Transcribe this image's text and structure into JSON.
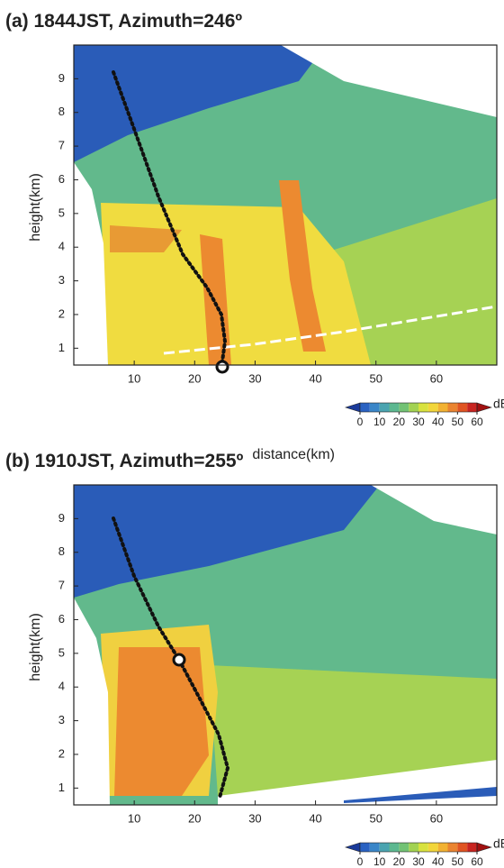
{
  "chart_data": [
    {
      "type": "heatmap",
      "title": "(a) 1844JST, Azimuth=246º",
      "xlabel": "distance(km)",
      "ylabel": "height(km)",
      "xlim": [
        0,
        70
      ],
      "ylim": [
        0.5,
        10
      ],
      "xticks": [
        10,
        20,
        30,
        40,
        50,
        60
      ],
      "yticks": [
        1,
        2,
        3,
        4,
        5,
        6,
        7,
        8,
        9
      ],
      "colorbar": {
        "label": "dBZ",
        "clim": [
          0,
          60
        ],
        "ticks": [
          0,
          10,
          20,
          30,
          40,
          50,
          60
        ],
        "colors": [
          "#1a3a9a",
          "#2a62c2",
          "#3a86c8",
          "#4aa4b0",
          "#5cb890",
          "#72c274",
          "#a2d252",
          "#d8e23e",
          "#f2d63a",
          "#f2b232",
          "#ea8430",
          "#e05422",
          "#c82420",
          "#a01010"
        ]
      }
    },
    {
      "type": "heatmap",
      "title": "(b) 1910JST, Azimuth=255º",
      "xlabel": "distance(km)",
      "ylabel": "height(km)",
      "xlim": [
        0,
        70
      ],
      "ylim": [
        0.5,
        10
      ],
      "xticks": [
        10,
        20,
        30,
        40,
        50,
        60
      ],
      "yticks": [
        1,
        2,
        3,
        4,
        5,
        6,
        7,
        8,
        9
      ],
      "colorbar": {
        "label": "dBZ",
        "clim": [
          0,
          60
        ],
        "ticks": [
          0,
          10,
          20,
          30,
          40,
          50,
          60
        ],
        "colors": [
          "#1a3a9a",
          "#2a62c2",
          "#3a86c8",
          "#4aa4b0",
          "#5cb890",
          "#72c274",
          "#a2d252",
          "#d8e23e",
          "#f2d63a",
          "#f2b232",
          "#ea8430",
          "#e05422",
          "#c82420",
          "#a01010"
        ]
      }
    }
  ]
}
